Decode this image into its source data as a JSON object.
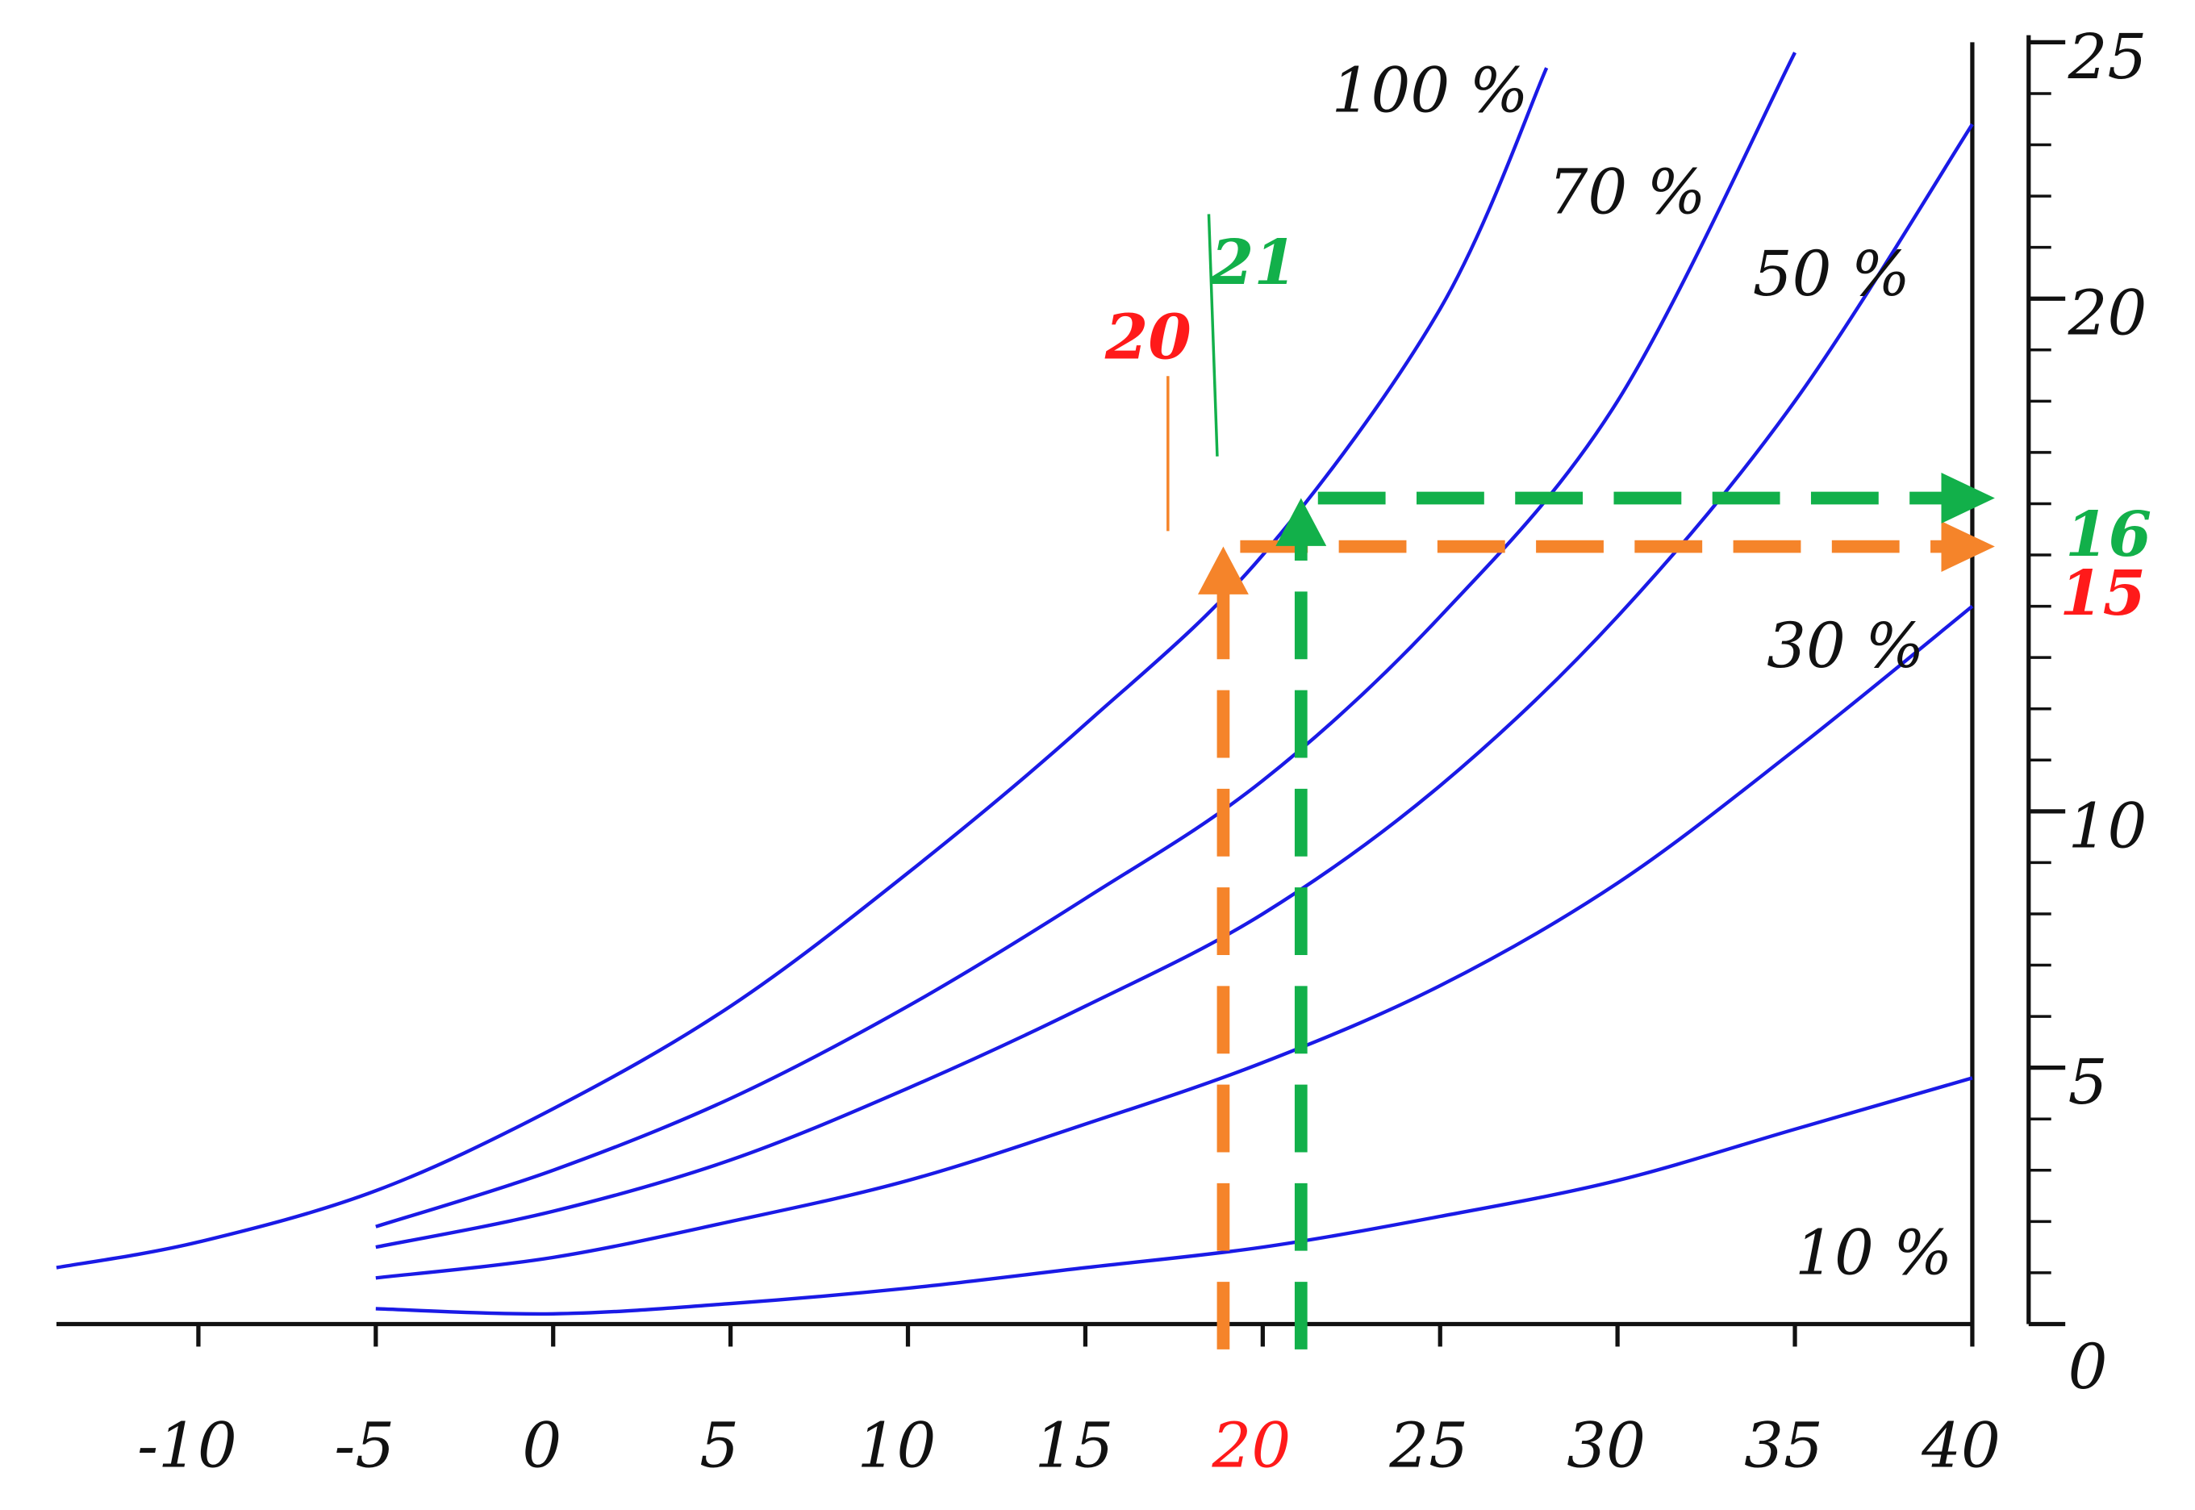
{
  "chart_data": {
    "type": "line",
    "xlim": [
      -14,
      40
    ],
    "ylim": [
      0,
      25
    ],
    "xticks": [
      -10,
      -5,
      0,
      5,
      10,
      15,
      20,
      25,
      30,
      35,
      40
    ],
    "yticks": [
      0,
      5,
      10,
      20,
      25
    ],
    "yminorticks": [
      1,
      2,
      3,
      4,
      6,
      7,
      8,
      9,
      11,
      12,
      13,
      14,
      15,
      16,
      17,
      18,
      19,
      21,
      22,
      23,
      24
    ],
    "series": [
      {
        "name": "100 %",
        "color": "#1a1ae6",
        "x": [
          -14,
          -10,
          -5,
          0,
          5,
          10,
          15,
          20,
          25,
          28
        ],
        "values": [
          1.1,
          1.6,
          2.6,
          4.2,
          6.2,
          8.8,
          11.7,
          15,
          19.8,
          24.5
        ]
      },
      {
        "name": "70 %",
        "color": "#1a1ae6",
        "x": [
          -5,
          0,
          5,
          10,
          15,
          20,
          25,
          30,
          35
        ],
        "values": [
          1.9,
          3.0,
          4.4,
          6.2,
          8.3,
          10.6,
          13.8,
          18,
          24.8
        ]
      },
      {
        "name": "50 %",
        "color": "#1a1ae6",
        "x": [
          -5,
          0,
          5,
          10,
          15,
          20,
          25,
          30,
          35,
          40
        ],
        "values": [
          1.5,
          2.2,
          3.2,
          4.6,
          6.2,
          8,
          10.5,
          13.8,
          18,
          23.4
        ]
      },
      {
        "name": "30 %",
        "color": "#1a1ae6",
        "x": [
          -5,
          0,
          5,
          10,
          15,
          20,
          25,
          30,
          35,
          40
        ],
        "values": [
          0.9,
          1.3,
          2,
          2.8,
          3.9,
          5.1,
          6.6,
          8.6,
          11.2,
          14
        ]
      },
      {
        "name": "10 %",
        "color": "#1a1ae6",
        "x": [
          -5,
          0,
          5,
          10,
          15,
          20,
          25,
          30,
          35,
          40
        ],
        "values": [
          0.3,
          0.2,
          0.4,
          0.7,
          1.1,
          1.5,
          2.1,
          2.8,
          3.8,
          4.8
        ]
      }
    ],
    "annotations": [
      {
        "x": 20,
        "y": 15,
        "arrow_color": "#f5842a",
        "label_color": "#ff1a1a"
      },
      {
        "x": 21,
        "y": 16,
        "arrow_color": "#12b04a",
        "label_color": "#12b04a"
      }
    ]
  }
}
